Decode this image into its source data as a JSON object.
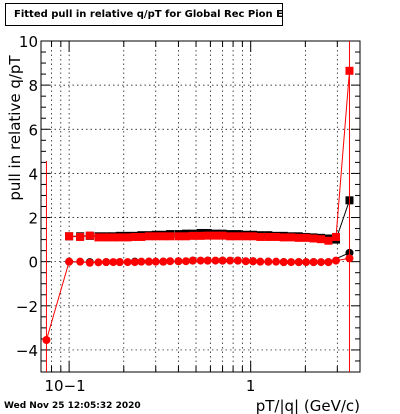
{
  "title": "Fitted pull in relative q/pT for Global Rec Pion EtapT",
  "timestamp": "Wed Nov 25 12:05:32 2020",
  "chart_data": {
    "type": "scatter",
    "title": "Fitted pull in relative q/pT for Global Rec Pion EtapT",
    "xlabel": "pT/|q| (GeV/c)",
    "ylabel": "pull in relative q/pT",
    "xscale": "log",
    "xlim": [
      0.07,
      4.0
    ],
    "ylim": [
      -5,
      10
    ],
    "grid": true,
    "x_tick_labels": [
      "10−1",
      "1"
    ],
    "y_tick_labels": [
      "−4",
      "−2",
      "0",
      "2",
      "4",
      "6",
      "8",
      "10"
    ],
    "series": [
      {
        "role": "sigma",
        "marker": "square",
        "color": "#ff0000",
        "x": [
          0.075,
          0.1,
          0.115,
          0.13,
          0.145,
          0.16,
          0.175,
          0.19,
          0.21,
          0.23,
          0.25,
          0.275,
          0.3,
          0.33,
          0.36,
          0.4,
          0.44,
          0.48,
          0.53,
          0.58,
          0.64,
          0.7,
          0.77,
          0.85,
          0.94,
          1.03,
          1.13,
          1.25,
          1.38,
          1.52,
          1.67,
          1.84,
          2.02,
          2.22,
          2.44,
          2.68,
          2.95,
          3.5
        ],
        "values": [
          null,
          1.15,
          1.12,
          1.18,
          1.1,
          1.1,
          1.1,
          1.1,
          1.1,
          1.12,
          1.12,
          1.15,
          1.15,
          1.15,
          1.15,
          1.15,
          1.15,
          1.17,
          1.17,
          1.18,
          1.18,
          1.18,
          1.15,
          1.15,
          1.15,
          1.15,
          1.12,
          1.12,
          1.12,
          1.1,
          1.1,
          1.08,
          1.08,
          1.05,
          1.02,
          0.95,
          1.12,
          8.65
        ]
      },
      {
        "role": "mean",
        "marker": "circle",
        "color": "#ff0000",
        "x": [
          0.075,
          0.1,
          0.115,
          0.13,
          0.145,
          0.16,
          0.175,
          0.19,
          0.21,
          0.23,
          0.25,
          0.275,
          0.3,
          0.33,
          0.36,
          0.4,
          0.44,
          0.48,
          0.53,
          0.58,
          0.64,
          0.7,
          0.77,
          0.85,
          0.94,
          1.03,
          1.13,
          1.25,
          1.38,
          1.52,
          1.67,
          1.84,
          2.02,
          2.22,
          2.44,
          2.68,
          2.95,
          3.5
        ],
        "values": [
          -3.55,
          0.0,
          0.0,
          -0.05,
          -0.03,
          -0.02,
          -0.02,
          -0.02,
          -0.02,
          -0.02,
          0.0,
          0.0,
          0.0,
          0.0,
          0.02,
          0.02,
          0.02,
          0.05,
          0.05,
          0.05,
          0.05,
          0.05,
          0.05,
          0.05,
          0.02,
          0.02,
          0.0,
          0.0,
          0.0,
          -0.02,
          -0.02,
          -0.02,
          -0.02,
          -0.02,
          -0.02,
          -0.02,
          0.05,
          0.15
        ]
      },
      {
        "role": "sigma-black",
        "marker": "square",
        "color": "#000000",
        "x": [
          0.1,
          0.115,
          0.13,
          0.145,
          0.16,
          0.175,
          0.19,
          0.21,
          0.23,
          0.25,
          0.275,
          0.3,
          0.33,
          0.36,
          0.4,
          0.44,
          0.48,
          0.53,
          0.58,
          0.64,
          0.7,
          0.77,
          0.85,
          0.94,
          1.03,
          1.13,
          1.25,
          1.38,
          1.52,
          1.67,
          1.84,
          2.02,
          2.22,
          2.44,
          2.68,
          2.95,
          3.5
        ],
        "values": [
          1.15,
          1.15,
          1.17,
          1.15,
          1.15,
          1.15,
          1.17,
          1.17,
          1.17,
          1.2,
          1.2,
          1.22,
          1.22,
          1.25,
          1.25,
          1.27,
          1.27,
          1.3,
          1.3,
          1.27,
          1.27,
          1.25,
          1.25,
          1.22,
          1.22,
          1.2,
          1.2,
          1.17,
          1.17,
          1.15,
          1.15,
          1.12,
          1.1,
          1.08,
          1.05,
          1.0,
          2.78
        ]
      },
      {
        "role": "mean-black",
        "marker": "circle",
        "color": "#000000",
        "x": [
          0.1,
          0.13,
          0.16,
          0.19,
          0.23,
          0.275,
          0.33,
          0.4,
          0.48,
          0.58,
          0.7,
          0.85,
          1.03,
          1.25,
          1.52,
          1.84,
          2.22,
          2.68,
          3.5
        ],
        "values": [
          0.0,
          -0.02,
          -0.02,
          -0.02,
          0.0,
          0.0,
          0.0,
          0.02,
          0.05,
          0.05,
          0.05,
          0.05,
          0.02,
          0.0,
          -0.02,
          -0.02,
          -0.02,
          -0.02,
          0.4
        ]
      }
    ]
  }
}
